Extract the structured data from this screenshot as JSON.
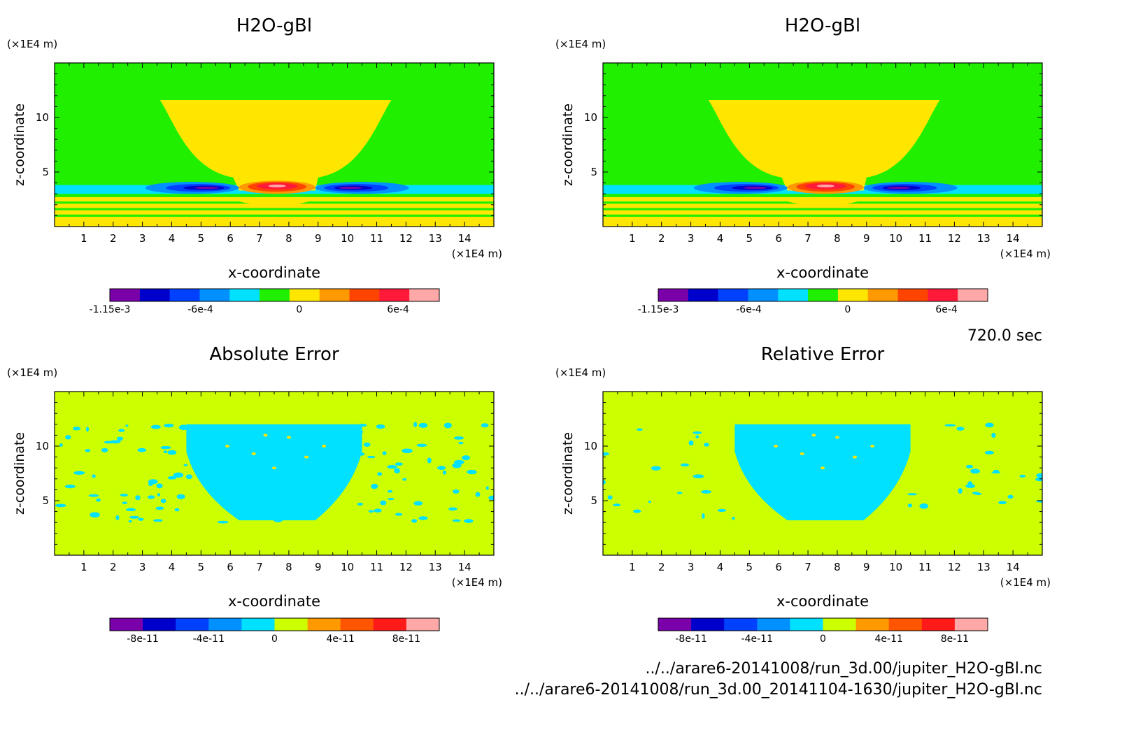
{
  "chart_data": [
    {
      "type": "heatmap",
      "title": "H2O-gBl",
      "xlabel": "x-coordinate",
      "ylabel": "z-coordinate",
      "x_unit": "(×1E4 m)",
      "y_unit": "(×1E4 m)",
      "xlim": [
        0,
        15
      ],
      "ylim": [
        0,
        15
      ],
      "x_ticks": [
        1,
        2,
        3,
        4,
        5,
        6,
        7,
        8,
        9,
        10,
        11,
        12,
        13,
        14
      ],
      "y_ticks": [
        5,
        10
      ],
      "colorbar": {
        "colors": [
          "#7a00aa",
          "#0000cc",
          "#0040ff",
          "#0090ff",
          "#00e0ff",
          "#20f000",
          "#ffe600",
          "#ff9900",
          "#ff4400",
          "#ff1a3a",
          "#ffa8a8"
        ],
        "tick_labels": [
          "-1.15e-3",
          "-6e-4",
          "0",
          "6e-4"
        ],
        "tick_values": [
          -0.00115,
          -0.0006,
          0,
          0.0006
        ],
        "range": [
          -0.00115,
          0.00085
        ]
      }
    },
    {
      "type": "heatmap",
      "title": "H2O-gBl",
      "xlabel": "x-coordinate",
      "ylabel": "z-coordinate",
      "x_unit": "(×1E4 m)",
      "y_unit": "(×1E4 m)",
      "xlim": [
        0,
        15
      ],
      "ylim": [
        0,
        15
      ],
      "x_ticks": [
        1,
        2,
        3,
        4,
        5,
        6,
        7,
        8,
        9,
        10,
        11,
        12,
        13,
        14
      ],
      "y_ticks": [
        5,
        10
      ],
      "colorbar": {
        "colors": [
          "#7a00aa",
          "#0000cc",
          "#0040ff",
          "#0090ff",
          "#00e0ff",
          "#20f000",
          "#ffe600",
          "#ff9900",
          "#ff4400",
          "#ff1a3a",
          "#ffa8a8"
        ],
        "tick_labels": [
          "-1.15e-3",
          "-6e-4",
          "0",
          "6e-4"
        ],
        "tick_values": [
          -0.00115,
          -0.0006,
          0,
          0.0006
        ],
        "range": [
          -0.00115,
          0.00085
        ]
      }
    },
    {
      "type": "heatmap",
      "title": "Absolute Error",
      "xlabel": "x-coordinate",
      "ylabel": "z-coordinate",
      "x_unit": "(×1E4 m)",
      "y_unit": "(×1E4 m)",
      "xlim": [
        0,
        15
      ],
      "ylim": [
        0,
        15
      ],
      "x_ticks": [
        1,
        2,
        3,
        4,
        5,
        6,
        7,
        8,
        9,
        10,
        11,
        12,
        13,
        14
      ],
      "y_ticks": [
        5,
        10
      ],
      "colorbar": {
        "colors": [
          "#7a00aa",
          "#0000cc",
          "#0040ff",
          "#0090ff",
          "#00e0ff",
          "#ccff00",
          "#ff9900",
          "#ff5500",
          "#ff1a1a",
          "#ffa8a8"
        ],
        "tick_labels": [
          "-8e-11",
          "-4e-11",
          "0",
          "4e-11",
          "8e-11"
        ],
        "tick_values": [
          -8e-11,
          -4e-11,
          0,
          4e-11,
          8e-11
        ],
        "range": [
          -1e-10,
          1e-10
        ]
      }
    },
    {
      "type": "heatmap",
      "title": "Relative Error",
      "xlabel": "x-coordinate",
      "ylabel": "z-coordinate",
      "x_unit": "(×1E4 m)",
      "y_unit": "(×1E4 m)",
      "xlim": [
        0,
        15
      ],
      "ylim": [
        0,
        15
      ],
      "x_ticks": [
        1,
        2,
        3,
        4,
        5,
        6,
        7,
        8,
        9,
        10,
        11,
        12,
        13,
        14
      ],
      "y_ticks": [
        5,
        10
      ],
      "colorbar": {
        "colors": [
          "#7a00aa",
          "#0000cc",
          "#0040ff",
          "#0090ff",
          "#00e0ff",
          "#ccff00",
          "#ff9900",
          "#ff5500",
          "#ff1a1a",
          "#ffa8a8"
        ],
        "tick_labels": [
          "-8e-11",
          "-4e-11",
          "0",
          "4e-11",
          "8e-11"
        ],
        "tick_values": [
          -8e-11,
          -4e-11,
          0,
          4e-11,
          8e-11
        ],
        "range": [
          -1e-10,
          1e-10
        ]
      }
    }
  ],
  "time_label": "720.0 sec",
  "file_paths": [
    "../../arare6-20141008/run_3d.00/jupiter_H2O-gBl.nc",
    "../../arare6-20141008/run_3d.00_20141104-1630/jupiter_H2O-gBl.nc"
  ]
}
